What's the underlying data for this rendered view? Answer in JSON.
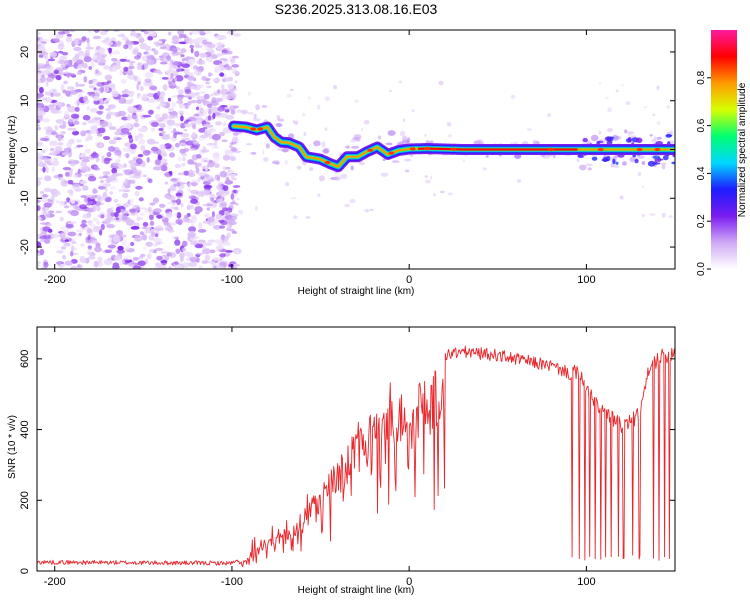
{
  "title": "S236.2025.313.08.16.E03",
  "chart_data": [
    {
      "type": "heatmap",
      "subtype": "spectrogram",
      "xlabel": "Height of straight line (km)",
      "ylabel": "Frequency (Hz)",
      "xlim": [
        -210,
        150
      ],
      "ylim": [
        -24.5,
        24.5
      ],
      "xticks": [
        -200,
        -100,
        0,
        100
      ],
      "yticks": [
        -20,
        -10,
        0,
        10,
        20
      ],
      "colorbar": {
        "label": "Normalized spectral amplitude",
        "range": [
          0,
          1
        ],
        "ticks": [
          0.0,
          0.2,
          0.4,
          0.6,
          0.8
        ],
        "colors": [
          "#ffffff",
          "#cfa9f5",
          "#7a1bf0",
          "#1d1dff",
          "#00d8ff",
          "#00ff70",
          "#d7ff00",
          "#ff9a00",
          "#ff0000",
          "#ff1aa0"
        ]
      },
      "noise_region_x": [
        -210,
        -97
      ],
      "ridge": [
        [
          -99,
          4.8
        ],
        [
          -92,
          4.6
        ],
        [
          -86,
          4.0
        ],
        [
          -80,
          4.6
        ],
        [
          -76,
          2.5
        ],
        [
          -72,
          1.5
        ],
        [
          -68,
          1.4
        ],
        [
          -62,
          0.5
        ],
        [
          -58,
          -1.5
        ],
        [
          -53,
          -1.8
        ],
        [
          -50,
          -2.0
        ],
        [
          -44,
          -3.0
        ],
        [
          -40,
          -3.5
        ],
        [
          -35,
          -1.5
        ],
        [
          -29,
          -1.5
        ],
        [
          -24,
          -0.5
        ],
        [
          -18,
          0.5
        ],
        [
          -12,
          -1.0
        ],
        [
          -6,
          -0.2
        ],
        [
          0,
          0.1
        ],
        [
          10,
          0.2
        ],
        [
          30,
          0.0
        ],
        [
          60,
          0.0
        ],
        [
          100,
          0.0
        ],
        [
          150,
          0.0
        ]
      ]
    },
    {
      "type": "line",
      "xlabel": "Height of straight line (km)",
      "ylabel": "SNR (10 * v/v)",
      "xlim": [
        -210,
        150
      ],
      "ylim": [
        0,
        690
      ],
      "xticks": [
        -200,
        -100,
        0,
        100
      ],
      "yticks": [
        0,
        200,
        400,
        600
      ],
      "color": "#e8262b",
      "envelope": [
        [
          -210,
          25
        ],
        [
          -100,
          22
        ],
        [
          -95,
          30
        ],
        [
          -90,
          50
        ],
        [
          -80,
          85
        ],
        [
          -70,
          120
        ],
        [
          -60,
          170
        ],
        [
          -50,
          240
        ],
        [
          -40,
          320
        ],
        [
          -30,
          400
        ],
        [
          -20,
          450
        ],
        [
          -10,
          500
        ],
        [
          0,
          540
        ],
        [
          10,
          580
        ],
        [
          20,
          610
        ],
        [
          30,
          620
        ],
        [
          40,
          615
        ],
        [
          50,
          610
        ],
        [
          60,
          600
        ],
        [
          70,
          590
        ],
        [
          80,
          580
        ],
        [
          85,
          570
        ],
        [
          90,
          560
        ],
        [
          95,
          560
        ],
        [
          100,
          520
        ],
        [
          105,
          470
        ],
        [
          110,
          450
        ],
        [
          120,
          410
        ],
        [
          130,
          440
        ],
        [
          135,
          560
        ],
        [
          140,
          600
        ],
        [
          150,
          620
        ]
      ],
      "dropouts_x": [
        92,
        96,
        99,
        102,
        105,
        108,
        111,
        114,
        118,
        121,
        126,
        130,
        138,
        141,
        144,
        147
      ],
      "dropout_min": 30
    }
  ]
}
